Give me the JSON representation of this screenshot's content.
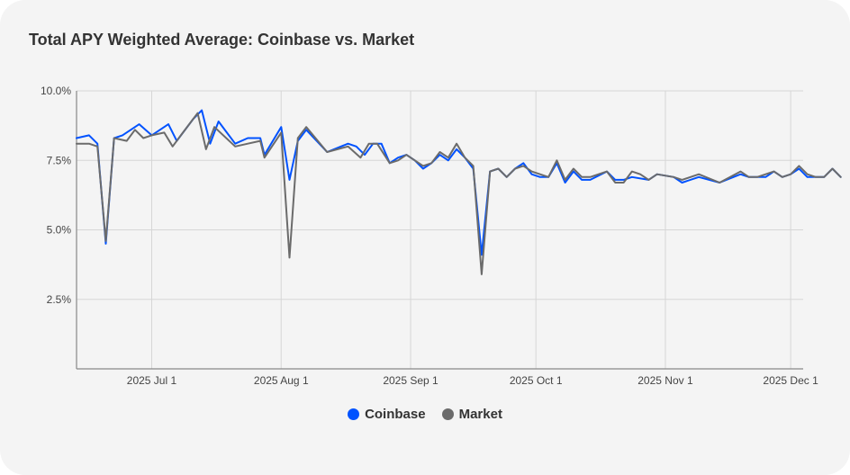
{
  "chart_data": {
    "type": "line",
    "title": "Total APY Weighted Average: Coinbase vs. Market",
    "xlabel": "",
    "ylabel": "",
    "ylim": [
      0,
      10
    ],
    "x_start": "2025-06-13",
    "x_end": "2025-12-04",
    "x_ticks": [
      {
        "date": "2025-07-01",
        "label": "2025 Jul 1"
      },
      {
        "date": "2025-08-01",
        "label": "2025 Aug 1"
      },
      {
        "date": "2025-09-01",
        "label": "2025 Sep 1"
      },
      {
        "date": "2025-10-01",
        "label": "2025 Oct 1"
      },
      {
        "date": "2025-11-01",
        "label": "2025 Nov 1"
      },
      {
        "date": "2025-12-01",
        "label": "2025 Dec 1"
      }
    ],
    "y_ticks": [
      {
        "value": 2.5,
        "label": "2.5%"
      },
      {
        "value": 5.0,
        "label": "5.0%"
      },
      {
        "value": 7.5,
        "label": "7.5%"
      },
      {
        "value": 10.0,
        "label": "10.0%"
      }
    ],
    "grid": true,
    "legend_position": "bottom",
    "series": [
      {
        "name": "Coinbase",
        "color": "#0052ff",
        "points": [
          [
            "2025-06-13",
            8.3
          ],
          [
            "2025-06-16",
            8.4
          ],
          [
            "2025-06-18",
            8.1
          ],
          [
            "2025-06-20",
            4.5
          ],
          [
            "2025-06-22",
            8.3
          ],
          [
            "2025-06-24",
            8.4
          ],
          [
            "2025-06-28",
            8.8
          ],
          [
            "2025-07-01",
            8.4
          ],
          [
            "2025-07-05",
            8.8
          ],
          [
            "2025-07-07",
            8.2
          ],
          [
            "2025-07-11",
            9.0
          ],
          [
            "2025-07-13",
            9.3
          ],
          [
            "2025-07-15",
            8.1
          ],
          [
            "2025-07-17",
            8.9
          ],
          [
            "2025-07-21",
            8.1
          ],
          [
            "2025-07-24",
            8.3
          ],
          [
            "2025-07-27",
            8.3
          ],
          [
            "2025-07-28",
            7.7
          ],
          [
            "2025-08-01",
            8.7
          ],
          [
            "2025-08-03",
            6.8
          ],
          [
            "2025-08-05",
            8.2
          ],
          [
            "2025-08-07",
            8.6
          ],
          [
            "2025-08-12",
            7.8
          ],
          [
            "2025-08-17",
            8.1
          ],
          [
            "2025-08-19",
            8.0
          ],
          [
            "2025-08-21",
            7.7
          ],
          [
            "2025-08-23",
            8.1
          ],
          [
            "2025-08-25",
            8.1
          ],
          [
            "2025-08-27",
            7.4
          ],
          [
            "2025-08-29",
            7.6
          ],
          [
            "2025-08-31",
            7.7
          ],
          [
            "2025-09-02",
            7.5
          ],
          [
            "2025-09-04",
            7.2
          ],
          [
            "2025-09-06",
            7.4
          ],
          [
            "2025-09-08",
            7.7
          ],
          [
            "2025-09-10",
            7.5
          ],
          [
            "2025-09-12",
            7.9
          ],
          [
            "2025-09-14",
            7.6
          ],
          [
            "2025-09-16",
            7.2
          ],
          [
            "2025-09-18",
            4.1
          ],
          [
            "2025-09-20",
            7.1
          ],
          [
            "2025-09-22",
            7.2
          ],
          [
            "2025-09-24",
            6.9
          ],
          [
            "2025-09-26",
            7.2
          ],
          [
            "2025-09-28",
            7.4
          ],
          [
            "2025-09-30",
            7.0
          ],
          [
            "2025-10-02",
            6.9
          ],
          [
            "2025-10-04",
            6.9
          ],
          [
            "2025-10-06",
            7.4
          ],
          [
            "2025-10-08",
            6.7
          ],
          [
            "2025-10-10",
            7.1
          ],
          [
            "2025-10-12",
            6.8
          ],
          [
            "2025-10-14",
            6.8
          ],
          [
            "2025-10-18",
            7.1
          ],
          [
            "2025-10-20",
            6.8
          ],
          [
            "2025-10-22",
            6.8
          ],
          [
            "2025-10-24",
            6.9
          ],
          [
            "2025-10-28",
            6.8
          ],
          [
            "2025-10-30",
            7.0
          ],
          [
            "2025-11-03",
            6.9
          ],
          [
            "2025-11-05",
            6.7
          ],
          [
            "2025-11-09",
            6.9
          ],
          [
            "2025-11-14",
            6.7
          ],
          [
            "2025-11-19",
            7.0
          ],
          [
            "2025-11-21",
            6.9
          ],
          [
            "2025-11-23",
            6.9
          ],
          [
            "2025-11-25",
            6.9
          ],
          [
            "2025-11-27",
            7.1
          ],
          [
            "2025-11-29",
            6.9
          ],
          [
            "2025-12-01",
            7.0
          ],
          [
            "2025-12-03",
            7.2
          ],
          [
            "2025-12-05",
            6.9
          ],
          [
            "2025-12-07",
            6.9
          ],
          [
            "2025-12-09",
            6.9
          ],
          [
            "2025-12-11",
            7.2
          ],
          [
            "2025-12-13",
            6.9
          ]
        ]
      },
      {
        "name": "Market",
        "color": "#6b6b6b",
        "points": [
          [
            "2025-06-13",
            8.1
          ],
          [
            "2025-06-16",
            8.1
          ],
          [
            "2025-06-18",
            8.0
          ],
          [
            "2025-06-20",
            4.6
          ],
          [
            "2025-06-22",
            8.3
          ],
          [
            "2025-06-25",
            8.2
          ],
          [
            "2025-06-27",
            8.6
          ],
          [
            "2025-06-29",
            8.3
          ],
          [
            "2025-07-01",
            8.4
          ],
          [
            "2025-07-04",
            8.5
          ],
          [
            "2025-07-06",
            8.0
          ],
          [
            "2025-07-08",
            8.4
          ],
          [
            "2025-07-12",
            9.2
          ],
          [
            "2025-07-14",
            7.9
          ],
          [
            "2025-07-16",
            8.7
          ],
          [
            "2025-07-21",
            8.0
          ],
          [
            "2025-07-24",
            8.1
          ],
          [
            "2025-07-27",
            8.2
          ],
          [
            "2025-07-28",
            7.6
          ],
          [
            "2025-08-01",
            8.5
          ],
          [
            "2025-08-03",
            4.0
          ],
          [
            "2025-08-05",
            8.3
          ],
          [
            "2025-08-07",
            8.7
          ],
          [
            "2025-08-12",
            7.8
          ],
          [
            "2025-08-17",
            8.0
          ],
          [
            "2025-08-20",
            7.6
          ],
          [
            "2025-08-22",
            8.1
          ],
          [
            "2025-08-24",
            8.1
          ],
          [
            "2025-08-27",
            7.4
          ],
          [
            "2025-08-29",
            7.5
          ],
          [
            "2025-08-31",
            7.7
          ],
          [
            "2025-09-02",
            7.5
          ],
          [
            "2025-09-04",
            7.3
          ],
          [
            "2025-09-06",
            7.4
          ],
          [
            "2025-09-08",
            7.8
          ],
          [
            "2025-09-10",
            7.6
          ],
          [
            "2025-09-12",
            8.1
          ],
          [
            "2025-09-14",
            7.6
          ],
          [
            "2025-09-16",
            7.3
          ],
          [
            "2025-09-18",
            3.4
          ],
          [
            "2025-09-20",
            7.1
          ],
          [
            "2025-09-22",
            7.2
          ],
          [
            "2025-09-24",
            6.9
          ],
          [
            "2025-09-26",
            7.2
          ],
          [
            "2025-09-28",
            7.3
          ],
          [
            "2025-09-30",
            7.1
          ],
          [
            "2025-10-02",
            7.0
          ],
          [
            "2025-10-04",
            6.9
          ],
          [
            "2025-10-06",
            7.5
          ],
          [
            "2025-10-08",
            6.8
          ],
          [
            "2025-10-10",
            7.2
          ],
          [
            "2025-10-12",
            6.9
          ],
          [
            "2025-10-14",
            6.9
          ],
          [
            "2025-10-18",
            7.1
          ],
          [
            "2025-10-20",
            6.7
          ],
          [
            "2025-10-22",
            6.7
          ],
          [
            "2025-10-24",
            7.1
          ],
          [
            "2025-10-26",
            7.0
          ],
          [
            "2025-10-28",
            6.8
          ],
          [
            "2025-10-30",
            7.0
          ],
          [
            "2025-11-03",
            6.9
          ],
          [
            "2025-11-05",
            6.8
          ],
          [
            "2025-11-09",
            7.0
          ],
          [
            "2025-11-14",
            6.7
          ],
          [
            "2025-11-19",
            7.1
          ],
          [
            "2025-11-21",
            6.9
          ],
          [
            "2025-11-23",
            6.9
          ],
          [
            "2025-11-25",
            7.0
          ],
          [
            "2025-11-27",
            7.1
          ],
          [
            "2025-11-29",
            6.9
          ],
          [
            "2025-12-01",
            7.0
          ],
          [
            "2025-12-03",
            7.3
          ],
          [
            "2025-12-05",
            7.0
          ],
          [
            "2025-12-07",
            6.9
          ],
          [
            "2025-12-09",
            6.9
          ],
          [
            "2025-12-11",
            7.2
          ],
          [
            "2025-12-13",
            6.9
          ]
        ]
      }
    ]
  }
}
